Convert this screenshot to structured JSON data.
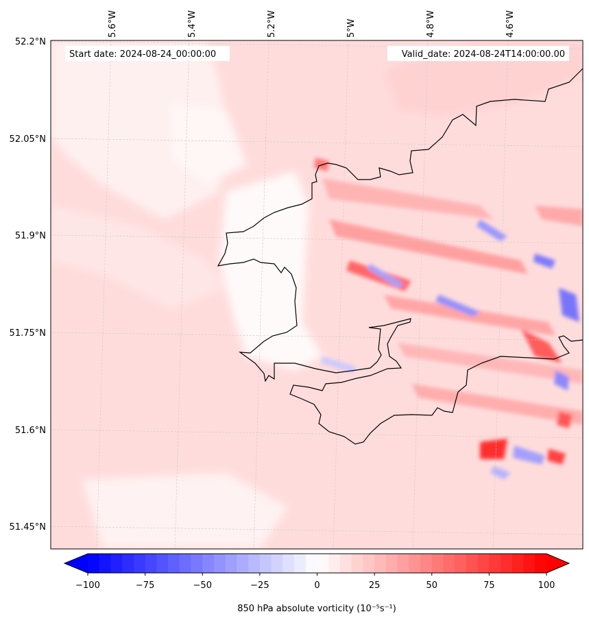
{
  "map": {
    "start_label": "Start date: 2024-08-24_00:00:00",
    "valid_label": "Valid_date: 2024-08-24T14:00:00.00",
    "lon_labels": [
      "5.6°W",
      "5.4°W",
      "5.2°W",
      "5°W",
      "4.8°W",
      "4.6°W"
    ],
    "lat_labels": [
      "52.2°N",
      "52.05°N",
      "51.9°N",
      "51.75°N",
      "51.6°N",
      "51.45°N"
    ]
  },
  "colorbar": {
    "min": -100,
    "max": 100,
    "tick_values": [
      -100,
      -75,
      -50,
      -25,
      0,
      25,
      50,
      75,
      100
    ],
    "tick_labels": [
      "−100",
      "−75",
      "−50",
      "−25",
      "0",
      "25",
      "50",
      "75",
      "100"
    ],
    "label": "850 hPa absolute vorticity (10⁻⁵s⁻¹)",
    "low_color": "#0000ff",
    "high_color": "#ff0000"
  }
}
